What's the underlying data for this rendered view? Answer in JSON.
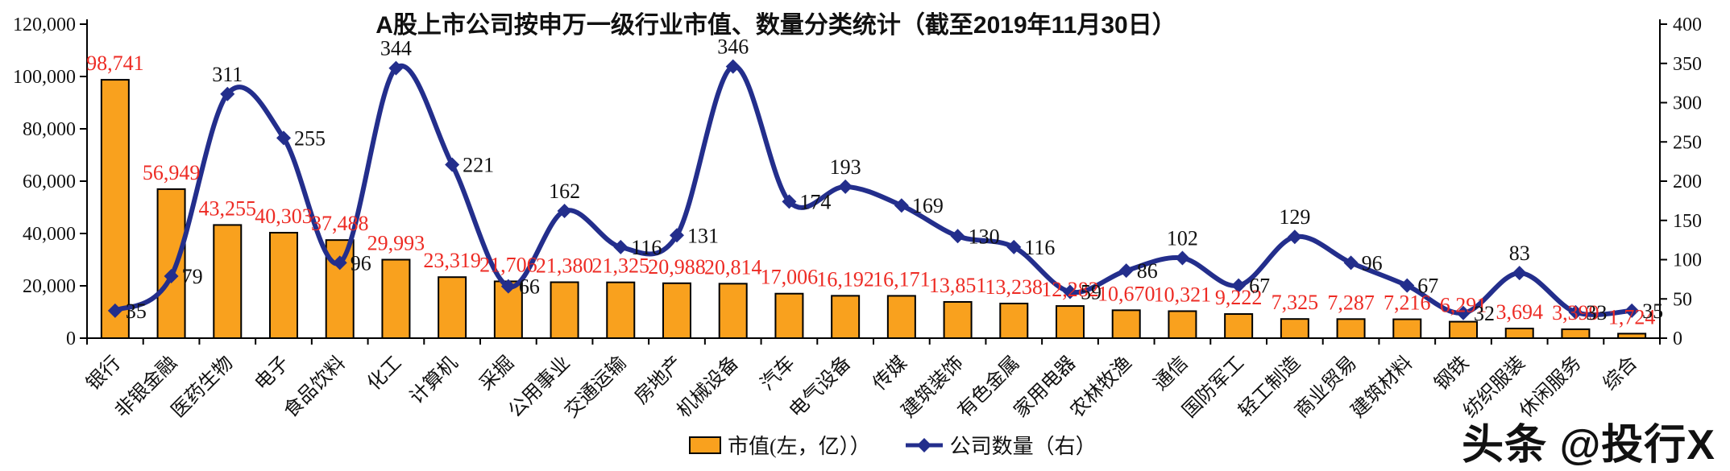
{
  "title": "A股上市公司按申万一级行业市值、数量分类统计（截至2019年11月30日）",
  "watermark": {
    "text": "头条 @投行X"
  },
  "legend": {
    "bar_label": "市值(左，亿））",
    "line_label": "公司数量（右）"
  },
  "colors": {
    "bar": "#F9A11E",
    "bar_border": "#000000",
    "line": "#232E8C",
    "bar_label": "#ED2B24",
    "count_label": "#111111",
    "axis": "#000000",
    "tick_label": "#111111"
  },
  "chart_data": {
    "type": "bar",
    "subtype": "combo-bar-line",
    "title": "A股上市公司按申万一级行业市值、数量分类统计（截至2019年11月30日）",
    "categories": [
      "银行",
      "非银金融",
      "医药生物",
      "电子",
      "食品饮料",
      "化工",
      "计算机",
      "采掘",
      "公用事业",
      "交通运输",
      "房地产",
      "机械设备",
      "汽车",
      "电气设备",
      "传媒",
      "建筑装饰",
      "有色金属",
      "家用电器",
      "农林牧渔",
      "通信",
      "国防军工",
      "轻工制造",
      "商业贸易",
      "建筑材料",
      "钢铁",
      "纺织服装",
      "休闲服务",
      "综合"
    ],
    "series": [
      {
        "name": "市值(左，亿））",
        "type": "bar",
        "axis": "left",
        "values": [
          98741,
          56949,
          43255,
          40303,
          37488,
          29993,
          23319,
          21706,
          21380,
          21325,
          20988,
          20814,
          17006,
          16192,
          16171,
          13851,
          13238,
          12282,
          10670,
          10321,
          9222,
          7325,
          7287,
          7216,
          6291,
          3694,
          3399,
          1724
        ]
      },
      {
        "name": "公司数量（右）",
        "type": "line",
        "axis": "right",
        "values": [
          35,
          79,
          311,
          255,
          96,
          344,
          221,
          66,
          162,
          116,
          131,
          346,
          174,
          193,
          169,
          130,
          116,
          59,
          86,
          102,
          67,
          129,
          96,
          67,
          32,
          83,
          33,
          35
        ]
      }
    ],
    "left_axis": {
      "min": 0,
      "max": 120000,
      "step": 20000,
      "ticks": [
        "0",
        "20,000",
        "40,000",
        "60,000",
        "80,000",
        "100,000",
        "120,000"
      ]
    },
    "right_axis": {
      "min": 0,
      "max": 400,
      "step": 50,
      "ticks": [
        "0",
        "50",
        "100",
        "150",
        "200",
        "250",
        "300",
        "350",
        "400"
      ]
    },
    "grid": false,
    "legend_position": "bottom",
    "xlabel": "",
    "ylabel": ""
  }
}
